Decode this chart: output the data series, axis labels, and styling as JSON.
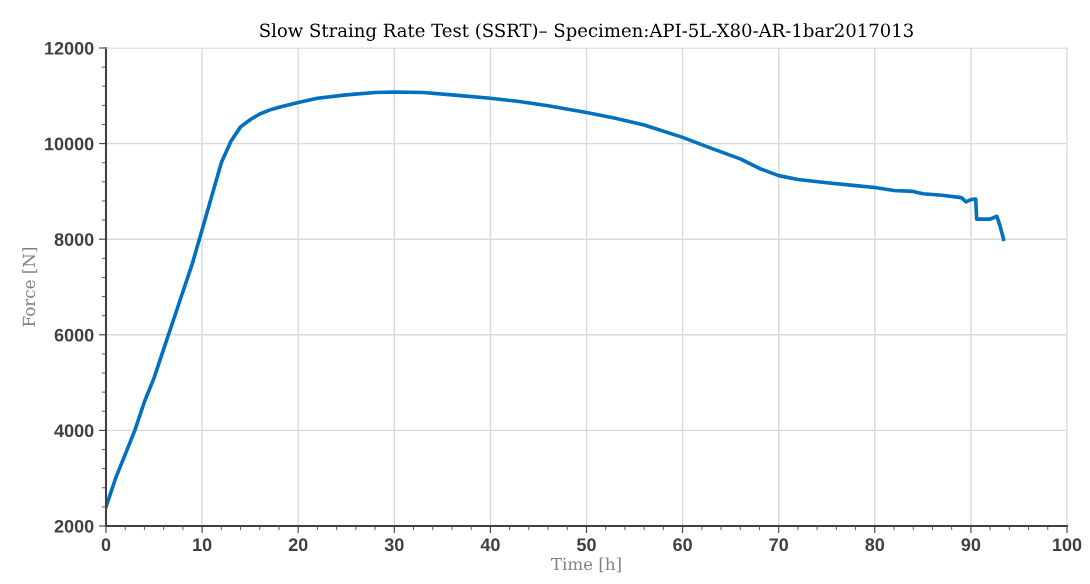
{
  "chart_data": {
    "type": "line",
    "title": "Slow Straing Rate Test (SSRT)– Specimen:API-5L-X80-AR-1bar2017013",
    "xlabel": "Time [h]",
    "ylabel": "Force [N]",
    "x": [
      0,
      1,
      2,
      3,
      4,
      5,
      6,
      7,
      8,
      9,
      10,
      11,
      12,
      13,
      14,
      15,
      16,
      17,
      18,
      20,
      22,
      25,
      28,
      30,
      33,
      36,
      40,
      43,
      46,
      50,
      53,
      56,
      60,
      63,
      66,
      68,
      70,
      72,
      75,
      78,
      80,
      82,
      84,
      85,
      87,
      89,
      89.5,
      90,
      90.5,
      90.6,
      92,
      92.7,
      93,
      93.4
    ],
    "series": [
      {
        "color": "#0070c0",
        "values": [
          2400,
          3000,
          3500,
          4000,
          4600,
          5100,
          5700,
          6300,
          6900,
          7500,
          8200,
          8900,
          9600,
          10050,
          10350,
          10500,
          10620,
          10700,
          10760,
          10860,
          10950,
          11020,
          11070,
          11080,
          11070,
          11020,
          10950,
          10880,
          10790,
          10650,
          10530,
          10390,
          10130,
          9900,
          9680,
          9480,
          9330,
          9250,
          9180,
          9120,
          9080,
          9020,
          9000,
          8950,
          8920,
          8870,
          8780,
          8830,
          8840,
          8420,
          8420,
          8480,
          8300,
          8000
        ]
      }
    ],
    "xlim": [
      0,
      100
    ],
    "xticks": [
      0,
      10,
      20,
      30,
      40,
      50,
      60,
      70,
      80,
      90,
      100
    ],
    "ylim": [
      2000,
      12000
    ],
    "yticks": [
      2000,
      4000,
      6000,
      8000,
      10000,
      12000
    ],
    "grid": true,
    "marker": "none",
    "line_style": "solid"
  }
}
